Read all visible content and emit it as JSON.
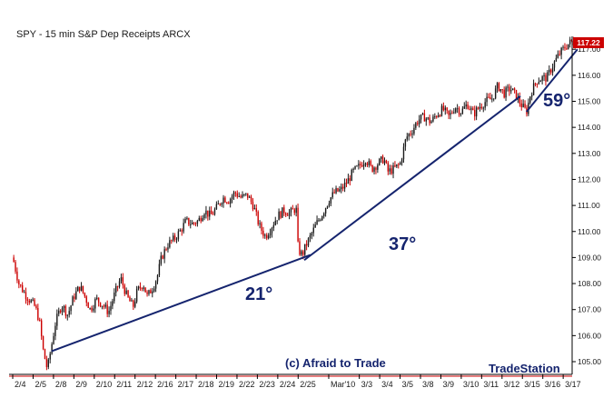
{
  "chart_data": {
    "type": "candlestick",
    "title": "SPY - 15 min  S&P Dep Receipts  ARCX",
    "y_ticks": [
      "105.00",
      "106.00",
      "107.00",
      "108.00",
      "109.00",
      "110.00",
      "111.00",
      "112.00",
      "113.00",
      "114.00",
      "115.00",
      "116.00",
      "117.00"
    ],
    "ylim": [
      104.6,
      117.6
    ],
    "x_tick_labels": [
      "2/4",
      "2/5",
      "2/8",
      "2/9",
      "2/10",
      "2/11",
      "2/12",
      "2/16",
      "2/17",
      "2/18",
      "2/19",
      "2/22",
      "2/23",
      "2/24",
      "2/25",
      "Mar'10",
      "3/3",
      "3/4",
      "3/5",
      "3/8",
      "3/9",
      "3/10",
      "3/11",
      "3/12",
      "3/15",
      "3/16",
      "3/17"
    ],
    "x_tick_sessions": [
      0,
      1,
      2,
      3,
      4,
      5,
      6,
      7,
      8,
      9,
      10,
      11,
      12,
      13,
      14,
      15.5,
      17,
      18,
      19,
      20,
      21,
      22,
      23,
      24,
      25,
      26,
      27
    ],
    "price_path": [
      [
        0.0,
        109.0
      ],
      [
        0.3,
        108.0
      ],
      [
        0.6,
        107.6
      ],
      [
        0.9,
        107.3
      ],
      [
        1.1,
        107.1
      ],
      [
        1.3,
        106.6
      ],
      [
        1.5,
        105.4
      ],
      [
        1.7,
        104.7
      ],
      [
        1.9,
        105.6
      ],
      [
        2.1,
        106.5
      ],
      [
        2.4,
        107.2
      ],
      [
        2.7,
        106.8
      ],
      [
        3.0,
        107.5
      ],
      [
        3.3,
        107.9
      ],
      [
        3.6,
        107.4
      ],
      [
        3.8,
        107.0
      ],
      [
        4.1,
        107.4
      ],
      [
        4.4,
        107.2
      ],
      [
        4.7,
        106.9
      ],
      [
        5.0,
        107.6
      ],
      [
        5.3,
        108.2
      ],
      [
        5.6,
        107.5
      ],
      [
        5.9,
        107.1
      ],
      [
        6.1,
        107.7
      ],
      [
        6.4,
        108.0
      ],
      [
        6.6,
        107.5
      ],
      [
        6.9,
        107.9
      ],
      [
        7.1,
        108.3
      ],
      [
        7.3,
        109.0
      ],
      [
        7.6,
        109.5
      ],
      [
        7.9,
        109.7
      ],
      [
        8.2,
        110.0
      ],
      [
        8.5,
        110.4
      ],
      [
        8.8,
        110.3
      ],
      [
        9.1,
        110.4
      ],
      [
        9.4,
        110.8
      ],
      [
        9.7,
        110.6
      ],
      [
        10.0,
        110.9
      ],
      [
        10.3,
        111.3
      ],
      [
        10.6,
        111.2
      ],
      [
        10.9,
        111.5
      ],
      [
        11.2,
        111.3
      ],
      [
        11.5,
        111.4
      ],
      [
        11.8,
        111.0
      ],
      [
        12.1,
        110.2
      ],
      [
        12.4,
        109.8
      ],
      [
        12.7,
        110.2
      ],
      [
        13.0,
        110.6
      ],
      [
        13.3,
        110.8
      ],
      [
        13.6,
        110.7
      ],
      [
        13.9,
        110.9
      ],
      [
        14.0,
        109.3
      ],
      [
        14.2,
        109.1
      ],
      [
        14.4,
        109.5
      ],
      [
        14.6,
        109.8
      ],
      [
        14.9,
        110.3
      ],
      [
        15.2,
        110.7
      ],
      [
        15.5,
        111.2
      ],
      [
        15.8,
        111.5
      ],
      [
        16.1,
        111.6
      ],
      [
        16.4,
        111.9
      ],
      [
        16.7,
        112.3
      ],
      [
        17.0,
        112.5
      ],
      [
        17.3,
        112.8
      ],
      [
        17.6,
        112.4
      ],
      [
        17.9,
        112.6
      ],
      [
        18.2,
        112.8
      ],
      [
        18.4,
        112.3
      ],
      [
        18.7,
        112.4
      ],
      [
        19.0,
        112.6
      ],
      [
        19.3,
        113.6
      ],
      [
        19.6,
        113.9
      ],
      [
        19.9,
        114.3
      ],
      [
        20.2,
        114.4
      ],
      [
        20.5,
        114.2
      ],
      [
        20.8,
        114.5
      ],
      [
        21.1,
        114.7
      ],
      [
        21.4,
        114.4
      ],
      [
        21.7,
        114.8
      ],
      [
        22.0,
        114.6
      ],
      [
        22.3,
        114.9
      ],
      [
        22.6,
        114.5
      ],
      [
        22.9,
        114.8
      ],
      [
        23.2,
        115.0
      ],
      [
        23.5,
        115.1
      ],
      [
        23.8,
        115.6
      ],
      [
        24.1,
        115.3
      ],
      [
        24.4,
        115.5
      ],
      [
        24.7,
        115.2
      ],
      [
        25.0,
        114.8
      ],
      [
        25.2,
        114.6
      ],
      [
        25.4,
        115.3
      ],
      [
        25.7,
        115.8
      ],
      [
        26.0,
        115.9
      ],
      [
        26.2,
        115.9
      ],
      [
        26.5,
        116.4
      ],
      [
        26.8,
        116.8
      ],
      [
        27.1,
        117.1
      ],
      [
        27.4,
        117.3
      ],
      [
        27.6,
        117.22
      ]
    ],
    "last_price": "117.22",
    "trendlines": [
      {
        "label": "21°",
        "from": [
          1.9,
          105.4
        ],
        "to": [
          14.6,
          109.1
        ]
      },
      {
        "label": "37°",
        "from": [
          14.3,
          108.9
        ],
        "to": [
          24.9,
          115.2
        ]
      },
      {
        "label": "59°",
        "from": [
          25.2,
          114.6
        ],
        "to": [
          27.7,
          117.0
        ]
      }
    ],
    "grid": false
  },
  "annotations": {
    "credit": "(c) Afraid to Trade",
    "brand": "TradeStation"
  },
  "colors": {
    "up_candle": "#1a1a1a",
    "down_candle": "#cc0000",
    "trendline": "#15246e",
    "axis": "#000000",
    "last_price_box": "#cc0000"
  }
}
